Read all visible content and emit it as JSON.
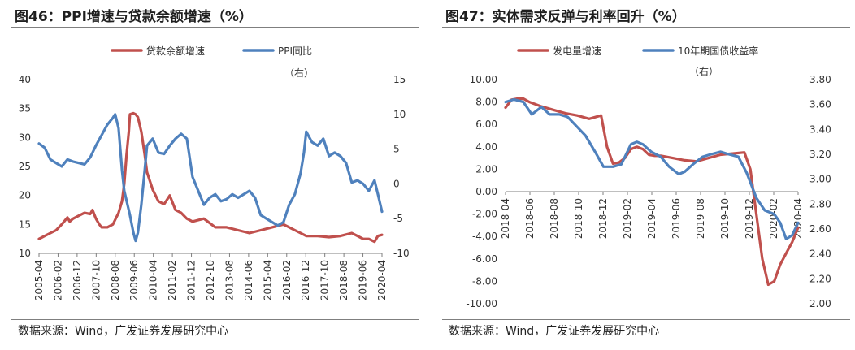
{
  "colors": {
    "red": "#c0504d",
    "blue": "#4f81bd",
    "axis": "#7f7f7f"
  },
  "chart_data": [
    {
      "type": "line",
      "title": "图46：PPI增速与贷款余额增速（%）",
      "source": "数据来源：Wind，广发证券发展研究中心",
      "legend": [
        "贷款余额增速",
        "PPI同比"
      ],
      "right_axis_note": "（右）",
      "xlabels": [
        "2005-04",
        "2006-02",
        "2006-12",
        "2007-10",
        "2008-08",
        "2009-06",
        "2010-04",
        "2011-02",
        "2011-12",
        "2012-10",
        "2013-08",
        "2014-06",
        "2015-04",
        "2016-02",
        "2016-12",
        "2017-10",
        "2018-08",
        "2019-06",
        "2020-04"
      ],
      "x_range": [
        2005.25,
        2020.33
      ],
      "left_axis": {
        "ylim": [
          10,
          40
        ],
        "ticks": [
          10,
          15,
          20,
          25,
          30,
          35,
          40
        ]
      },
      "right_axis": {
        "ylim": [
          -10,
          15
        ],
        "ticks": [
          -10,
          -5,
          0,
          5,
          10,
          15
        ]
      },
      "series": [
        {
          "name": "贷款余额增速",
          "axis": "left",
          "color": "red",
          "x": [
            2005.25,
            2005.5,
            2005.75,
            2006.0,
            2006.25,
            2006.5,
            2006.6,
            2006.75,
            2007.0,
            2007.25,
            2007.5,
            2007.6,
            2007.75,
            2007.9,
            2008.0,
            2008.25,
            2008.5,
            2008.75,
            2008.9,
            2009.0,
            2009.1,
            2009.2,
            2009.25,
            2009.4,
            2009.5,
            2009.6,
            2009.75,
            2009.9,
            2010.0,
            2010.25,
            2010.5,
            2010.75,
            2011.0,
            2011.1,
            2011.25,
            2011.5,
            2011.75,
            2012.0,
            2012.5,
            2013.0,
            2013.5,
            2014.0,
            2014.5,
            2015.0,
            2015.5,
            2016.0,
            2016.25,
            2016.5,
            2016.75,
            2017.0,
            2017.5,
            2018.0,
            2018.5,
            2019.0,
            2019.25,
            2019.5,
            2019.75,
            2020.0,
            2020.15,
            2020.33
          ],
          "values": [
            12.5,
            13.0,
            13.5,
            14.0,
            15.0,
            16.2,
            15.5,
            16.0,
            16.5,
            17.0,
            16.8,
            17.5,
            16.0,
            15.0,
            14.5,
            14.5,
            15.0,
            17.0,
            19.0,
            22.0,
            27.0,
            31.0,
            34.0,
            34.2,
            34.0,
            33.5,
            31.0,
            27.0,
            24.0,
            21.0,
            19.0,
            18.5,
            20.0,
            19.0,
            17.5,
            17.0,
            16.0,
            15.5,
            16.0,
            14.5,
            14.5,
            14.0,
            13.5,
            14.0,
            14.5,
            15.0,
            14.5,
            14.0,
            13.5,
            13.0,
            13.0,
            12.8,
            13.0,
            13.5,
            13.0,
            12.5,
            12.5,
            12.0,
            13.0,
            13.2
          ]
        },
        {
          "name": "PPI同比",
          "axis": "right",
          "color": "blue",
          "x": [
            2005.25,
            2005.5,
            2005.75,
            2006.0,
            2006.25,
            2006.5,
            2006.75,
            2007.0,
            2007.25,
            2007.5,
            2007.75,
            2008.0,
            2008.25,
            2008.5,
            2008.6,
            2008.75,
            2008.9,
            2009.0,
            2009.25,
            2009.4,
            2009.5,
            2009.6,
            2009.75,
            2009.9,
            2010.0,
            2010.25,
            2010.5,
            2010.75,
            2011.0,
            2011.25,
            2011.5,
            2011.75,
            2012.0,
            2012.25,
            2012.5,
            2012.75,
            2013.0,
            2013.25,
            2013.5,
            2013.75,
            2014.0,
            2014.25,
            2014.5,
            2014.75,
            2015.0,
            2015.25,
            2015.5,
            2015.75,
            2016.0,
            2016.25,
            2016.5,
            2016.75,
            2016.9,
            2017.0,
            2017.25,
            2017.5,
            2017.75,
            2018.0,
            2018.25,
            2018.5,
            2018.75,
            2019.0,
            2019.25,
            2019.5,
            2019.75,
            2020.0,
            2020.15,
            2020.33
          ],
          "values": [
            5.8,
            5.2,
            3.5,
            3.0,
            2.5,
            3.5,
            3.2,
            3.0,
            2.8,
            3.8,
            5.5,
            7.0,
            8.5,
            9.5,
            10.0,
            8.0,
            2.0,
            -1.0,
            -4.5,
            -7.0,
            -8.2,
            -7.0,
            -3.0,
            2.0,
            5.5,
            6.5,
            4.5,
            4.3,
            5.5,
            6.5,
            7.2,
            6.5,
            1.0,
            -1.0,
            -3.0,
            -2.0,
            -1.5,
            -2.5,
            -2.2,
            -1.5,
            -2.0,
            -1.5,
            -1.0,
            -2.0,
            -4.5,
            -5.0,
            -5.5,
            -6.0,
            -5.5,
            -3.0,
            -1.5,
            1.5,
            4.5,
            7.5,
            6.0,
            5.5,
            6.5,
            4.0,
            4.5,
            4.0,
            3.0,
            0.2,
            0.5,
            0.0,
            -1.0,
            0.5,
            -1.5,
            -4.0
          ]
        }
      ]
    },
    {
      "type": "line",
      "title": "图47：实体需求反弹与利率回升（%）",
      "source": "数据来源：Wind，广发证券发展研究中心",
      "legend": [
        "发电量增速",
        "10年期国债收益率"
      ],
      "right_axis_note": "（右）",
      "xlabels": [
        "2018-04",
        "2018-06",
        "2018-08",
        "2018-10",
        "2018-12",
        "2019-02",
        "2019-04",
        "2019-06",
        "2019-08",
        "2019-10",
        "2019-12",
        "2020-02",
        "2020-04"
      ],
      "x_range": [
        0,
        24.5
      ],
      "left_axis": {
        "ylim": [
          -10,
          10
        ],
        "ticks": [
          "-10.00",
          "-8.00",
          "-6.00",
          "-4.00",
          "-2.00",
          "0.00",
          "2.00",
          "4.00",
          "6.00",
          "8.00",
          "10.00"
        ]
      },
      "right_axis": {
        "ylim": [
          2.0,
          3.8
        ],
        "ticks": [
          "2.00",
          "2.20",
          "2.40",
          "2.60",
          "2.80",
          "3.00",
          "3.20",
          "3.40",
          "3.60",
          "3.80"
        ]
      },
      "series": [
        {
          "name": "发电量增速",
          "axis": "left",
          "color": "red",
          "x": [
            0,
            0.5,
            1,
            1.5,
            2,
            3,
            4,
            5,
            6,
            7,
            8,
            8.5,
            9,
            9.5,
            10,
            10.5,
            11,
            11.5,
            12,
            12.5,
            13,
            14,
            15,
            16,
            17,
            18,
            19,
            20,
            20.5,
            21,
            21.5,
            22,
            22.5,
            23,
            23.5,
            24,
            24.5
          ],
          "values": [
            7.5,
            8.2,
            8.3,
            8.3,
            8.0,
            7.6,
            7.3,
            7.0,
            6.8,
            6.5,
            6.8,
            4.0,
            2.5,
            2.6,
            3.0,
            3.8,
            4.0,
            3.8,
            3.3,
            3.2,
            3.2,
            3.0,
            2.8,
            2.7,
            3.0,
            3.3,
            3.4,
            3.5,
            2.0,
            -2.0,
            -6.0,
            -8.3,
            -8.0,
            -6.5,
            -5.5,
            -4.5,
            -3.2
          ]
        },
        {
          "name": "10年期国债收益率",
          "axis": "right",
          "color": "blue",
          "x": [
            0,
            0.7,
            1.5,
            2.2,
            3,
            3.7,
            4.5,
            5.2,
            6,
            6.7,
            7.5,
            8.2,
            9,
            9.7,
            10.5,
            11,
            11.5,
            12.2,
            13,
            13.7,
            14.5,
            15,
            15.7,
            16.5,
            17.2,
            18,
            18.7,
            19.5,
            20.2,
            21,
            21.7,
            22.5,
            23,
            23.5,
            24,
            24.5
          ],
          "values": [
            3.62,
            3.64,
            3.62,
            3.52,
            3.58,
            3.52,
            3.52,
            3.5,
            3.42,
            3.35,
            3.22,
            3.1,
            3.1,
            3.12,
            3.28,
            3.3,
            3.28,
            3.22,
            3.18,
            3.1,
            3.04,
            3.06,
            3.12,
            3.18,
            3.2,
            3.22,
            3.2,
            3.18,
            3.05,
            2.85,
            2.75,
            2.72,
            2.65,
            2.52,
            2.55,
            2.65
          ]
        }
      ]
    }
  ]
}
